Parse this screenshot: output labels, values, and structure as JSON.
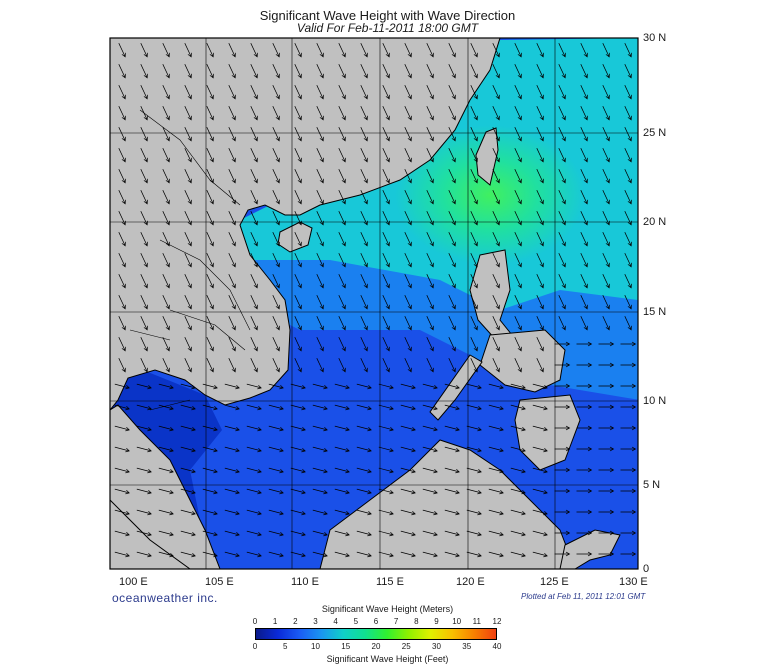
{
  "title": "Significant Wave Height with Wave Direction",
  "subtitle": "Valid For Feb-11-2011 18:00 GMT",
  "lat_labels": [
    "30 N",
    "25 N",
    "20 N",
    "15 N",
    "10 N",
    "5 N",
    "0"
  ],
  "lon_labels": [
    "100 E",
    "105 E",
    "110 E",
    "115 E",
    "120 E",
    "125 E",
    "130 E"
  ],
  "brand": "oceanweather inc.",
  "plotted": "Plotted at Feb 11, 2011 12:01 GMT",
  "colorbar": {
    "meters_title": "Significant Wave Height (Meters)",
    "meters_ticks": [
      "0",
      "1",
      "2",
      "3",
      "4",
      "5",
      "6",
      "7",
      "8",
      "9",
      "10",
      "11",
      "12"
    ],
    "feet_title": "Significant Wave Height (Feet)",
    "feet_ticks": [
      "0",
      "5",
      "10",
      "15",
      "20",
      "25",
      "30",
      "35",
      "40"
    ],
    "colors": [
      "#0a1a8a",
      "#0a2ad8",
      "#1a5cf5",
      "#1a96f0",
      "#10d0c8",
      "#10e090",
      "#30f030",
      "#90f000",
      "#e0f000",
      "#f8c000",
      "#f88000",
      "#f04010"
    ]
  },
  "colors": {
    "land": "#c0c0c0",
    "ocean_low": "#1a50e8",
    "ocean_high": "#30e8a0"
  },
  "arrows": "wave-direction-arrows"
}
